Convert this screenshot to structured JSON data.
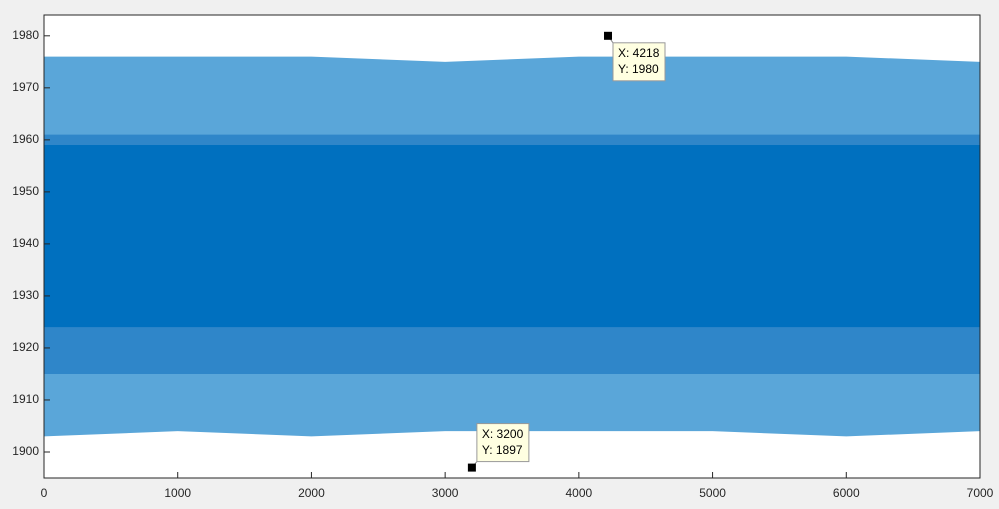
{
  "chart_data": {
    "type": "band",
    "xlim": [
      0,
      7000
    ],
    "ylim": [
      1895,
      1984
    ],
    "xticks": [
      0,
      1000,
      2000,
      3000,
      4000,
      5000,
      6000,
      7000
    ],
    "yticks": [
      1900,
      1910,
      1920,
      1930,
      1940,
      1950,
      1960,
      1970,
      1980
    ],
    "x": [
      0,
      1000,
      2000,
      3000,
      4000,
      5000,
      6000,
      7000
    ],
    "series": [
      {
        "color": "#5aa6d9",
        "upper": [
          1976,
          1976,
          1976,
          1975,
          1976,
          1976,
          1976,
          1975
        ],
        "lower": [
          1903,
          1904,
          1903,
          1904,
          1904,
          1904,
          1903,
          1904
        ]
      },
      {
        "color": "#2f86c9",
        "upper": [
          1961,
          1961,
          1961,
          1961,
          1961,
          1961,
          1961,
          1961
        ],
        "lower": [
          1915,
          1915,
          1915,
          1915,
          1915,
          1915,
          1915,
          1915
        ]
      },
      {
        "color": "#0070bf",
        "upper": [
          1959,
          1959,
          1959,
          1959,
          1959,
          1959,
          1959,
          1959
        ],
        "lower": [
          1924,
          1924,
          1924,
          1924,
          1924,
          1924,
          1924,
          1924
        ]
      }
    ],
    "datatips": [
      {
        "x": 4218,
        "y": 1980,
        "x_label": "X: 4218",
        "y_label": "Y: 1980",
        "position": "below"
      },
      {
        "x": 3200,
        "y": 1897,
        "x_label": "X: 3200",
        "y_label": "Y: 1897",
        "position": "above"
      }
    ]
  }
}
